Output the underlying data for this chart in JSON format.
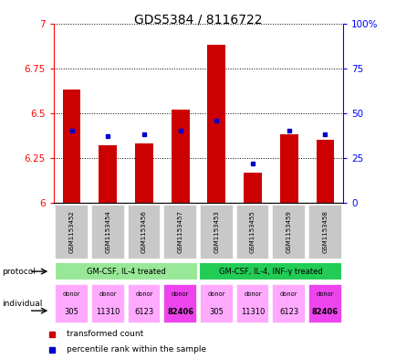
{
  "title": "GDS5384 / 8116722",
  "samples": [
    "GSM1153452",
    "GSM1153454",
    "GSM1153456",
    "GSM1153457",
    "GSM1153453",
    "GSM1153455",
    "GSM1153459",
    "GSM1153458"
  ],
  "red_values": [
    6.63,
    6.32,
    6.33,
    6.52,
    6.88,
    6.17,
    6.38,
    6.35
  ],
  "blue_percentiles": [
    40,
    37,
    38,
    40,
    46,
    22,
    40,
    38
  ],
  "ylim_left": [
    6.0,
    7.0
  ],
  "ylim_right": [
    0,
    100
  ],
  "yticks_left": [
    6.0,
    6.25,
    6.5,
    6.75,
    7.0
  ],
  "yticks_right": [
    0,
    25,
    50,
    75,
    100
  ],
  "ytick_left_labels": [
    "6",
    "6.25",
    "6.5",
    "6.75",
    "7"
  ],
  "ytick_right_labels": [
    "0",
    "25",
    "50",
    "75",
    "100%"
  ],
  "protocol_groups": [
    {
      "label": "GM-CSF, IL-4 treated",
      "start": 0,
      "end": 4,
      "color": "#98E898"
    },
    {
      "label": "GM-CSF, IL-4, INF-γ treated",
      "start": 4,
      "end": 8,
      "color": "#22CC55"
    }
  ],
  "individuals": [
    "305",
    "11310",
    "6123",
    "82406",
    "305",
    "11310",
    "6123",
    "82406"
  ],
  "ind_colors": [
    "#FFAAFF",
    "#FFAAFF",
    "#FFAAFF",
    "#EE44EE",
    "#FFAAFF",
    "#FFAAFF",
    "#FFAAFF",
    "#EE44EE"
  ],
  "bar_color": "#CC0000",
  "dot_color": "#0000CC",
  "sample_bg_color": "#C8C8C8",
  "bar_width": 0.5
}
